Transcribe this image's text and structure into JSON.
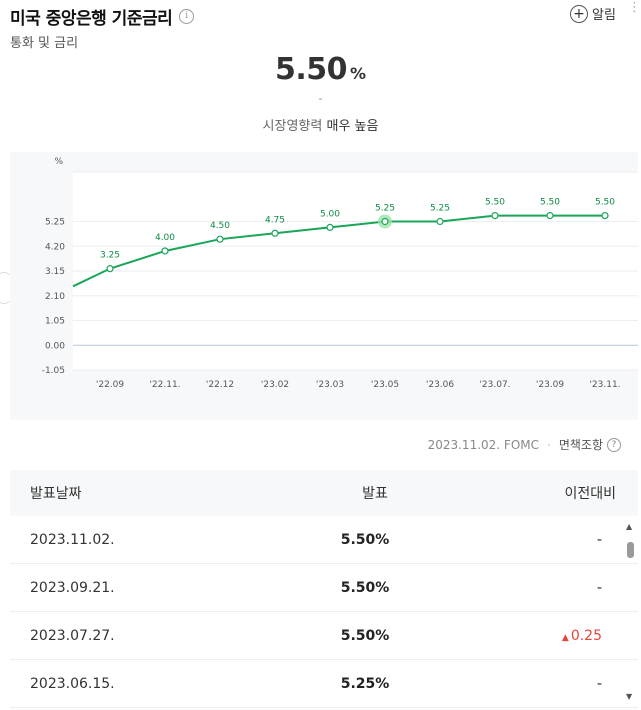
{
  "header": {
    "title": "미국 중앙은행 기준금리",
    "subtitle": "통화 및 금리",
    "alarm_label": "알림",
    "info_icon": "i"
  },
  "summary": {
    "value": "5.50",
    "unit": "%",
    "change": "-",
    "impact_label": "시장영향력",
    "impact_value": "매우 높음"
  },
  "source": {
    "date_label": "2023.11.02. FOMC",
    "disclaimer": "면책조항",
    "q": "?"
  },
  "colors": {
    "line": "#1aa559",
    "up": "#e4463c"
  },
  "chart_data": {
    "type": "line",
    "y_unit_label": "%",
    "yticks": [
      "-1.05",
      "0.00",
      "1.05",
      "2.10",
      "3.15",
      "4.20",
      "5.25"
    ],
    "ylim": [
      -1.05,
      7.35
    ],
    "x_labels": [
      "'22.09",
      "'22.11.",
      "'22.12",
      "'23.02",
      "'23.03",
      "'23.05",
      "'23.06",
      "'23.07.",
      "'23.09",
      "'23.11."
    ],
    "values": [
      3.25,
      4.0,
      4.5,
      4.75,
      5.0,
      5.25,
      5.25,
      5.5,
      5.5,
      5.5
    ],
    "value_labels": [
      "3.25",
      "4.00",
      "4.50",
      "4.75",
      "5.00",
      "5.25",
      "5.25",
      "5.50",
      "5.50",
      "5.50"
    ],
    "highlight_index": 5,
    "prior_value": 2.5,
    "grid": true
  },
  "table": {
    "headers": {
      "date": "발표날짜",
      "value": "발표",
      "change": "이전대비"
    },
    "rows": [
      {
        "date": "2023.11.02.",
        "value": "5.50%",
        "change": "-"
      },
      {
        "date": "2023.09.21.",
        "value": "5.50%",
        "change": "-"
      },
      {
        "date": "2023.07.27.",
        "value": "5.50%",
        "change": "0.25",
        "direction": "up",
        "arrow": "▲"
      },
      {
        "date": "2023.06.15.",
        "value": "5.25%",
        "change": "-"
      }
    ]
  },
  "scrollbar": {
    "up": "▲",
    "down": "▼"
  },
  "menu_dots": "⋮"
}
